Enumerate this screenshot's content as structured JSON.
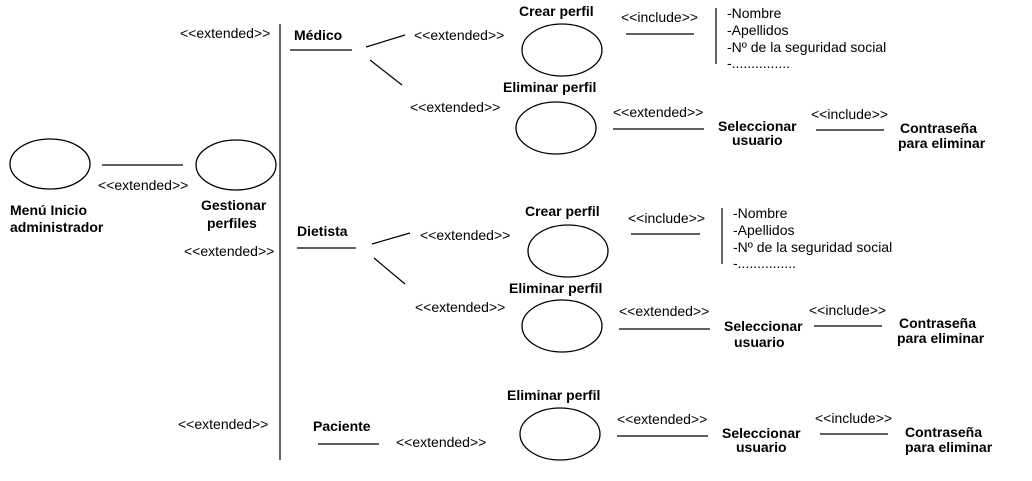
{
  "diagram": {
    "root": {
      "label_line1": "Menú Inicio",
      "label_line2": "administrador"
    },
    "manage": {
      "label_line1": "Gestionar",
      "label_line2": "perfiles"
    },
    "stereotypes": {
      "extended": "<<extended>>",
      "include": "<<include>>"
    },
    "actors": {
      "medico": "Médico",
      "dietista": "Dietista",
      "paciente": "Paciente"
    },
    "use_cases": {
      "create": "Crear perfil",
      "delete": "Eliminar perfil"
    },
    "select_user": {
      "line1": "Seleccionar",
      "line2": "usuario"
    },
    "password": {
      "line1": "Contraseña",
      "line2": "para eliminar"
    },
    "fields": [
      "-Nombre",
      "-Apellidos",
      "-Nº de la seguridad social",
      "-..............."
    ]
  },
  "colors": {
    "stroke": "#000000",
    "background": "#ffffff"
  }
}
